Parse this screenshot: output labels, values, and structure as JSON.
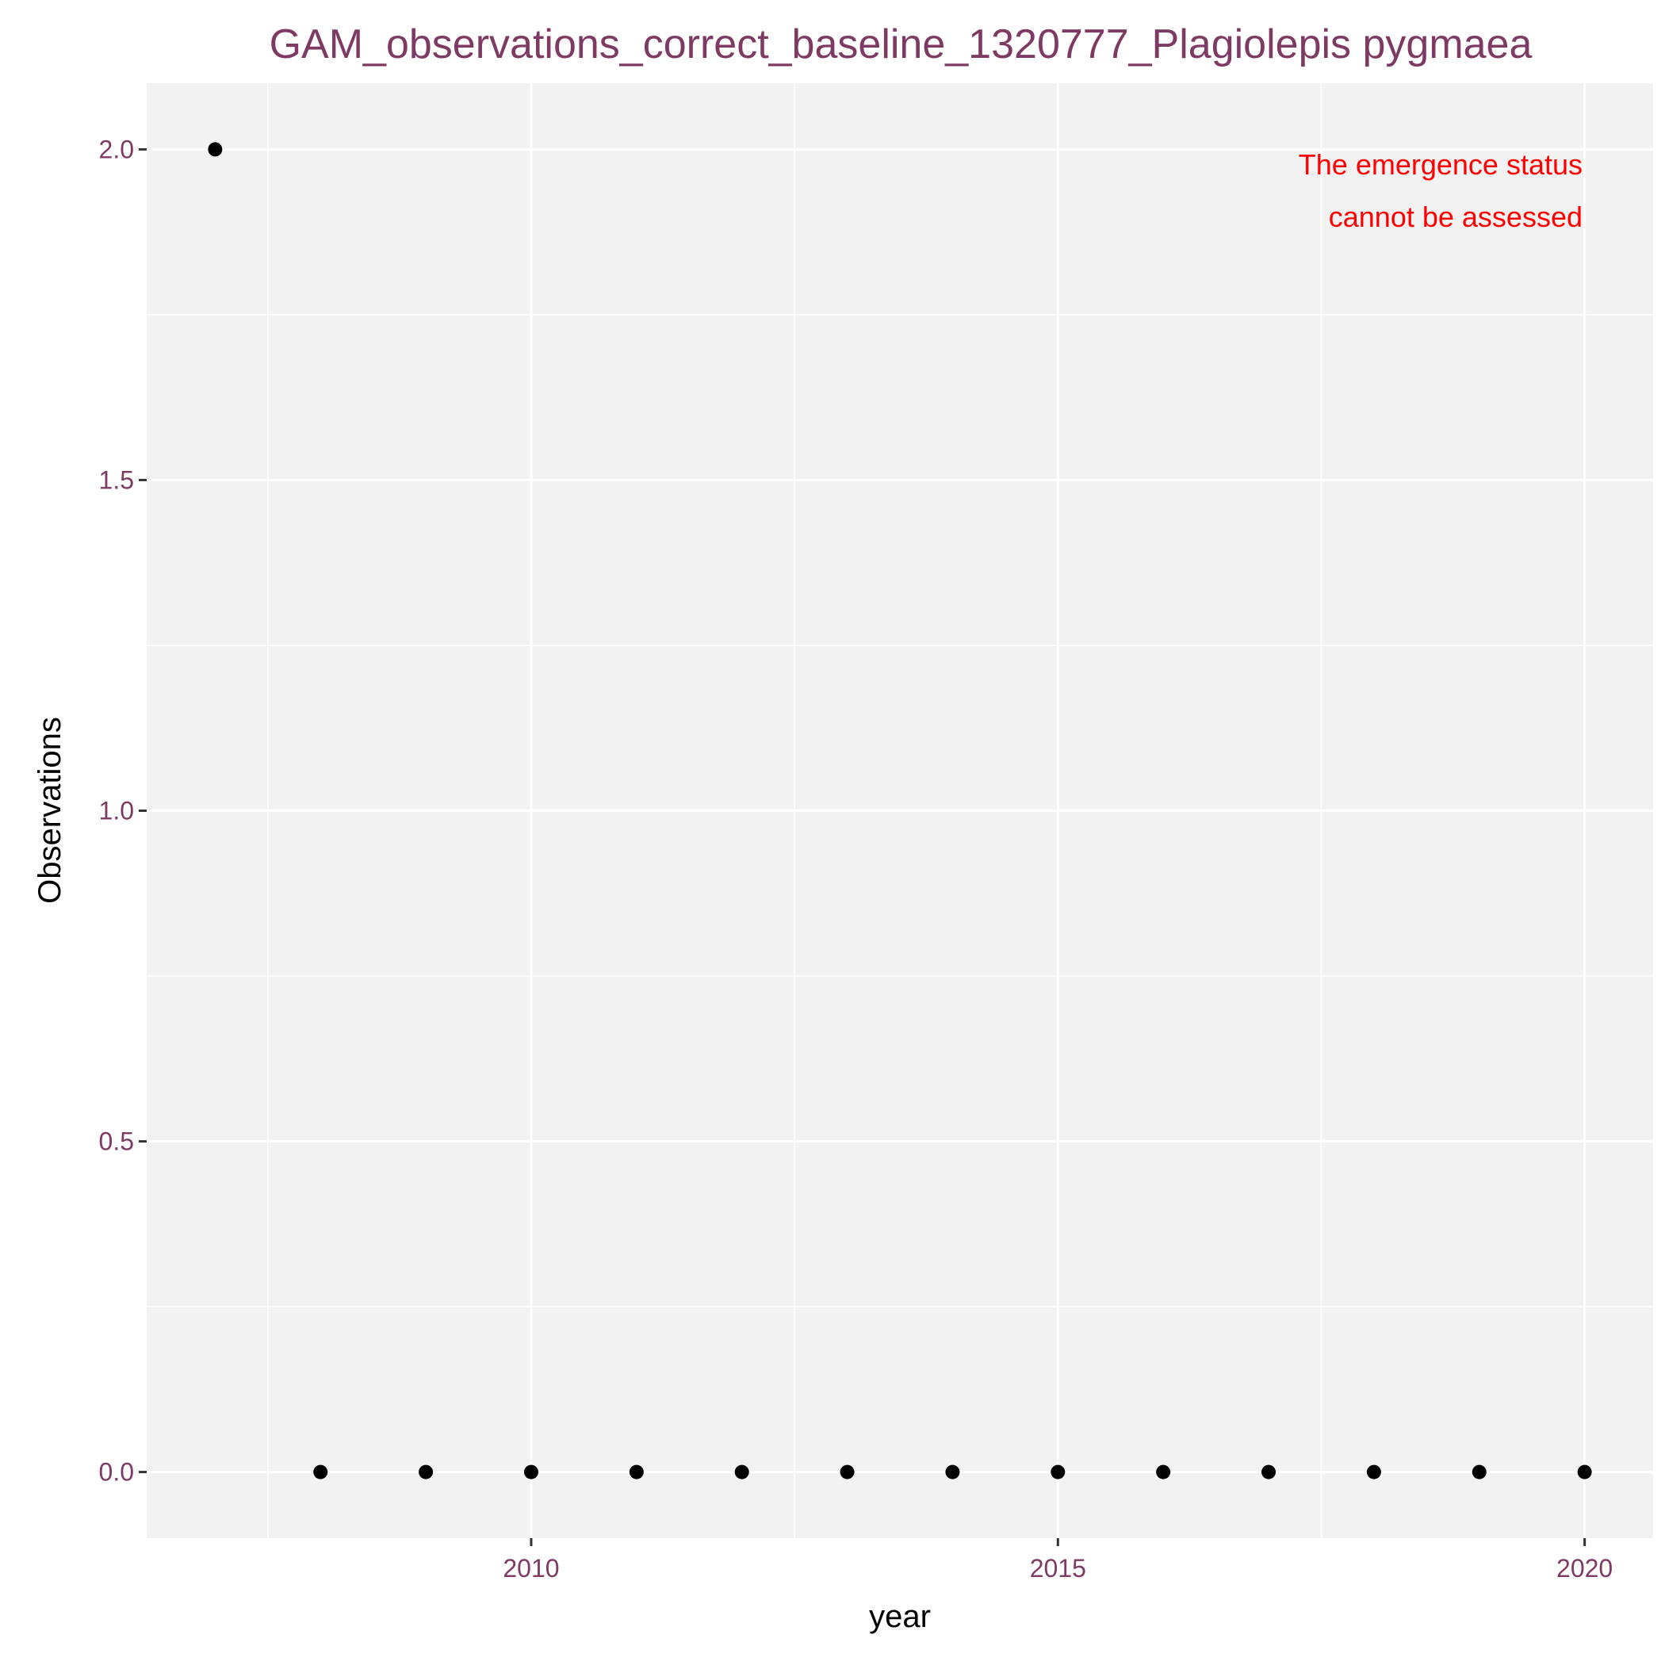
{
  "chart_data": {
    "type": "scatter",
    "title": "GAM_observations_correct_baseline_1320777_Plagiolepis pygmaea",
    "xlabel": "year",
    "ylabel": "Observations",
    "x": [
      2007,
      2008,
      2009,
      2010,
      2011,
      2012,
      2013,
      2014,
      2015,
      2016,
      2017,
      2018,
      2019,
      2020
    ],
    "y": [
      2,
      0,
      0,
      0,
      0,
      0,
      0,
      0,
      0,
      0,
      0,
      0,
      0,
      0
    ],
    "xlim": [
      2006.35,
      2020.65
    ],
    "ylim": [
      -0.1,
      2.1
    ],
    "x_ticks": [
      2010,
      2015,
      2020
    ],
    "x_tick_labels": [
      "2010",
      "2015",
      "2020"
    ],
    "y_ticks": [
      0,
      0.5,
      1,
      1.5,
      2
    ],
    "y_tick_labels": [
      "0.0",
      "0.5",
      "1.0",
      "1.5",
      "2.0"
    ],
    "annotation": [
      "The emergence status",
      "cannot be assessed"
    ],
    "grid": true,
    "legend": "none",
    "colors": {
      "panel_background": "#f2f2f2",
      "grid": "#ffffff",
      "points": "#000000",
      "title": "#7f3a63",
      "tick_labels": "#7f3a63",
      "annotation": "#ff0000"
    }
  }
}
